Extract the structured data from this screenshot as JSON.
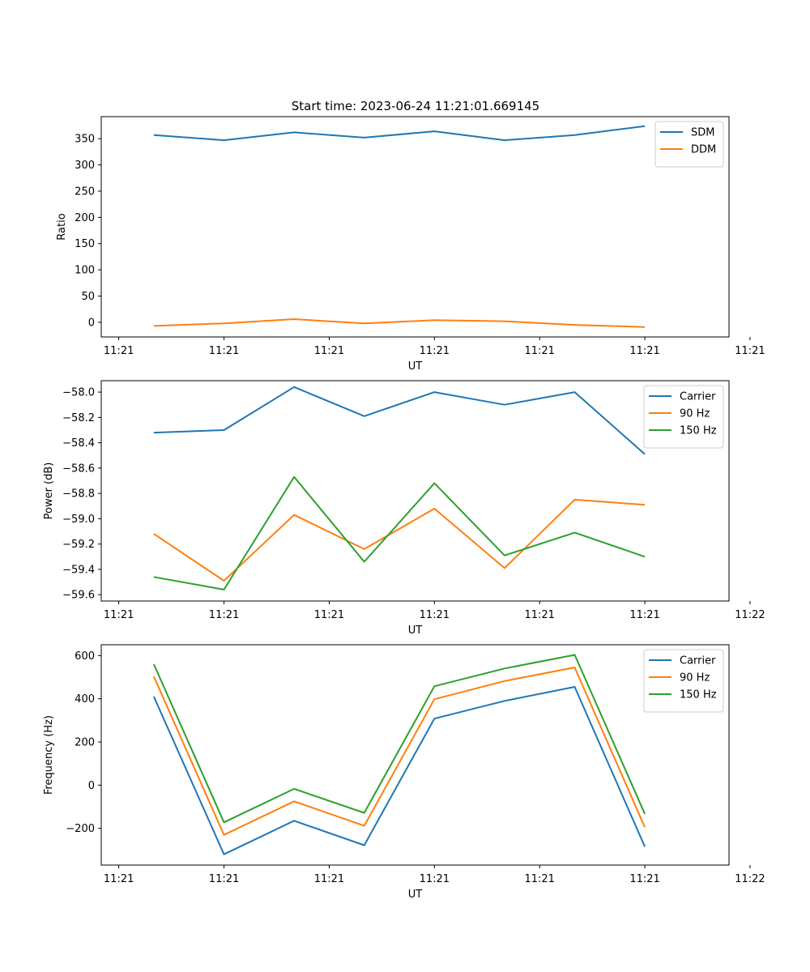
{
  "figure_title": "Start time: 2023-06-24 11:21:01.669145",
  "chart_data": [
    {
      "type": "line",
      "title": "Start time: 2023-06-24 11:21:01.669145",
      "xlabel": "UT",
      "ylabel": "Ratio",
      "x": [
        1,
        2,
        3,
        4,
        5,
        6,
        7,
        8
      ],
      "xlim": [
        0.25,
        9.2
      ],
      "x_ticks": [
        0.5,
        2.0,
        3.5,
        5.0,
        6.5,
        8.0,
        9.5
      ],
      "x_tick_labels": [
        "11:21",
        "11:21",
        "11:21",
        "11:21",
        "11:21",
        "11:21",
        "11:21"
      ],
      "y_ticks": [
        0,
        50,
        100,
        150,
        200,
        250,
        300,
        350
      ],
      "ylim": [
        -28,
        392
      ],
      "legend": "top-right",
      "grid": false,
      "series": [
        {
          "name": "SDM",
          "color": "#1f77b4",
          "values": [
            357,
            347,
            362,
            352,
            364,
            347,
            357,
            374
          ]
        },
        {
          "name": "DDM",
          "color": "#ff7f0e",
          "values": [
            -7,
            -2,
            6,
            -2,
            4,
            2,
            -5,
            -9
          ]
        }
      ]
    },
    {
      "type": "line",
      "xlabel": "UT",
      "ylabel": "Power (dB)",
      "x": [
        1,
        2,
        3,
        4,
        5,
        6,
        7,
        8
      ],
      "xlim": [
        0.25,
        9.2
      ],
      "x_ticks": [
        0.5,
        2.0,
        3.5,
        5.0,
        6.5,
        8.0,
        9.5
      ],
      "x_tick_labels": [
        "11:21",
        "11:21",
        "11:21",
        "11:21",
        "11:21",
        "11:21",
        "11:22"
      ],
      "y_ticks": [
        -59.6,
        -59.4,
        -59.2,
        -59.0,
        -58.8,
        -58.6,
        -58.4,
        -58.2,
        -58.0
      ],
      "y_tick_labels": [
        "−59.6",
        "−59.4",
        "−59.2",
        "−59.0",
        "−58.8",
        "−58.6",
        "−58.4",
        "−58.2",
        "−58.0"
      ],
      "ylim": [
        -59.65,
        -57.91
      ],
      "legend": "top-right",
      "grid": false,
      "series": [
        {
          "name": "Carrier",
          "color": "#1f77b4",
          "values": [
            -58.32,
            -58.3,
            -57.96,
            -58.19,
            -58.0,
            -58.1,
            -58.0,
            -58.49
          ]
        },
        {
          "name": "90 Hz",
          "color": "#ff7f0e",
          "values": [
            -59.12,
            -59.49,
            -58.97,
            -59.24,
            -58.92,
            -59.39,
            -58.85,
            -58.89
          ]
        },
        {
          "name": "150 Hz",
          "color": "#2ca02c",
          "values": [
            -59.46,
            -59.56,
            -58.67,
            -59.34,
            -58.72,
            -59.29,
            -59.11,
            -59.3
          ]
        }
      ]
    },
    {
      "type": "line",
      "xlabel": "UT",
      "ylabel": "Frequency (Hz)",
      "x": [
        1,
        2,
        3,
        4,
        5,
        6,
        7,
        8
      ],
      "xlim": [
        0.25,
        9.2
      ],
      "x_ticks": [
        0.5,
        2.0,
        3.5,
        5.0,
        6.5,
        8.0,
        9.5
      ],
      "x_tick_labels": [
        "11:21",
        "11:21",
        "11:21",
        "11:21",
        "11:21",
        "11:21",
        "11:22"
      ],
      "y_ticks": [
        -200,
        0,
        200,
        400,
        600
      ],
      "y_tick_labels": [
        "−200",
        "0",
        "200",
        "400",
        "600"
      ],
      "ylim": [
        -370,
        650
      ],
      "legend": "top-right",
      "grid": false,
      "series": [
        {
          "name": "Carrier",
          "color": "#1f77b4",
          "values": [
            410,
            -320,
            -165,
            -278,
            308,
            390,
            455,
            -285
          ]
        },
        {
          "name": "90 Hz",
          "color": "#ff7f0e",
          "values": [
            503,
            -230,
            -75,
            -188,
            398,
            482,
            545,
            -195
          ]
        },
        {
          "name": "150 Hz",
          "color": "#2ca02c",
          "values": [
            560,
            -172,
            -17,
            -128,
            458,
            540,
            603,
            -133
          ]
        }
      ]
    }
  ]
}
